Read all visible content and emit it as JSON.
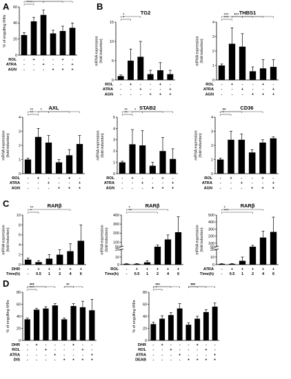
{
  "panel_labels": [
    "A",
    "B",
    "C",
    "D"
  ],
  "chart_data": [
    {
      "id": "A",
      "type": "bar",
      "title": "",
      "ylabel": "% of engulfing MΦs",
      "ylim": [
        0,
        60
      ],
      "yticks": [
        "0",
        "20",
        "40",
        "60"
      ],
      "values": [
        25,
        42,
        50,
        27,
        30,
        34
      ],
      "errors": [
        3,
        5,
        6,
        4,
        6,
        6
      ],
      "rows": [
        {
          "label": "ROL",
          "marks": [
            "-",
            "+",
            "-",
            "-",
            "+",
            "-"
          ]
        },
        {
          "label": "ATRA",
          "marks": [
            "-",
            "-",
            "+",
            "-",
            "-",
            "+"
          ]
        },
        {
          "label": "AGN",
          "marks": [
            "-",
            "-",
            "-",
            "+",
            "+",
            "+"
          ]
        }
      ],
      "sig": [
        {
          "a": 0,
          "b": 1,
          "label": "****"
        },
        {
          "a": 0,
          "b": 2,
          "label": "****"
        },
        {
          "a": 1,
          "b": 4,
          "label": "*"
        },
        {
          "a": 2,
          "b": 5,
          "label": "***"
        }
      ]
    },
    {
      "id": "TG2",
      "type": "bar",
      "title": "TG2",
      "ylabel": "mRNA expression\n(fold induction)",
      "ylim": [
        0,
        15
      ],
      "yticks": [
        "0",
        "5",
        "10",
        "15"
      ],
      "values": [
        1,
        5,
        6,
        1.5,
        2.5,
        1.5
      ],
      "errors": [
        0.3,
        3,
        4,
        1,
        2,
        1
      ],
      "rows": [
        {
          "label": "ROL",
          "marks": [
            "-",
            "+",
            "-",
            "-",
            "+",
            "-"
          ]
        },
        {
          "label": "ATRA",
          "marks": [
            "-",
            "-",
            "+",
            "-",
            "-",
            "+"
          ]
        },
        {
          "label": "AGN",
          "marks": [
            "-",
            "-",
            "-",
            "+",
            "+",
            "+"
          ]
        }
      ],
      "sig": [
        {
          "a": 0,
          "b": 1,
          "label": "*"
        },
        {
          "a": 0,
          "b": 2,
          "label": "*"
        }
      ]
    },
    {
      "id": "THBS1",
      "type": "bar",
      "title": "THBS1",
      "ylabel": "mRNA expression\n(fold induction)",
      "ylim": [
        0,
        4
      ],
      "yticks": [
        "0",
        "1",
        "2",
        "3",
        "4"
      ],
      "values": [
        1,
        2.5,
        2.3,
        0.6,
        0.8,
        0.9
      ],
      "errors": [
        0.1,
        1.1,
        0.9,
        0.3,
        0.6,
        0.5
      ],
      "rows": [
        {
          "label": "ROL",
          "marks": [
            "-",
            "+",
            "-",
            "-",
            "+",
            "-"
          ]
        },
        {
          "label": "ATRA",
          "marks": [
            "-",
            "-",
            "+",
            "-",
            "-",
            "+"
          ]
        },
        {
          "label": "AGN",
          "marks": [
            "-",
            "-",
            "-",
            "+",
            "+",
            "+"
          ]
        }
      ],
      "sig": [
        {
          "a": 0,
          "b": 1,
          "label": "***"
        },
        {
          "a": 0,
          "b": 2,
          "label": "***"
        },
        {
          "a": 1,
          "b": 3,
          "label": "***"
        },
        {
          "a": 1,
          "b": 4,
          "label": "*"
        },
        {
          "a": 2,
          "b": 5,
          "label": "*"
        }
      ]
    },
    {
      "id": "AXL",
      "type": "bar",
      "title": "AXL",
      "ylabel": "mRNA expression\n(fold induction)",
      "ylim": [
        0,
        4
      ],
      "yticks": [
        "0",
        "1",
        "2",
        "3",
        "4"
      ],
      "values": [
        1,
        2.6,
        2.2,
        0.8,
        1.3,
        2.1
      ],
      "errors": [
        0.1,
        0.6,
        0.5,
        0.2,
        0.4,
        0.6
      ],
      "rows": [
        {
          "label": "ROL",
          "marks": [
            "-",
            "+",
            "-",
            "-",
            "+",
            "-"
          ]
        },
        {
          "label": "ATRA",
          "marks": [
            "-",
            "-",
            "+",
            "-",
            "-",
            "+"
          ]
        },
        {
          "label": "AGN",
          "marks": [
            "-",
            "-",
            "-",
            "+",
            "+",
            "+"
          ]
        }
      ],
      "sig": [
        {
          "a": 0,
          "b": 1,
          "label": "**"
        },
        {
          "a": 0,
          "b": 2,
          "label": "**"
        },
        {
          "a": 1,
          "b": 4,
          "label": "*"
        },
        {
          "a": 2,
          "b": 5,
          "label": "*"
        }
      ]
    },
    {
      "id": "STAB2",
      "type": "bar",
      "title": "STAB2",
      "ylabel": "mRNA expression\n(fold induction)",
      "ylim": [
        0,
        5
      ],
      "yticks": [
        "0",
        "1",
        "2",
        "3",
        "4",
        "5"
      ],
      "values": [
        1,
        2.6,
        2.5,
        0.7,
        2.0,
        1.3
      ],
      "errors": [
        0.1,
        1.3,
        1.3,
        0.3,
        1.2,
        0.9
      ],
      "rows": [
        {
          "label": "ROL",
          "marks": [
            "-",
            "+",
            "-",
            "-",
            "+",
            "-"
          ]
        },
        {
          "label": "ATRA",
          "marks": [
            "-",
            "-",
            "+",
            "-",
            "-",
            "+"
          ]
        },
        {
          "label": "AGN",
          "marks": [
            "-",
            "-",
            "-",
            "+",
            "+",
            "+"
          ]
        }
      ],
      "sig": [
        {
          "a": 0,
          "b": 1,
          "label": "**"
        },
        {
          "a": 0,
          "b": 2,
          "label": "**"
        },
        {
          "a": 1,
          "b": 4,
          "label": "*"
        },
        {
          "a": 2,
          "b": 5,
          "label": "*"
        }
      ]
    },
    {
      "id": "CD36",
      "type": "bar",
      "title": "CD36",
      "ylabel": "mRNA expression\n(fold induction)",
      "ylim": [
        0,
        4
      ],
      "yticks": [
        "0",
        "1",
        "2",
        "3",
        "4"
      ],
      "values": [
        1,
        2.4,
        2.4,
        1.5,
        2.2,
        2.5
      ],
      "errors": [
        0.1,
        0.6,
        0.4,
        0.2,
        0.2,
        0.1
      ],
      "rows": [
        {
          "label": "ROL",
          "marks": [
            "-",
            "+",
            "-",
            "-",
            "+",
            "-"
          ]
        },
        {
          "label": "ATRA",
          "marks": [
            "-",
            "-",
            "+",
            "-",
            "-",
            "+"
          ]
        },
        {
          "label": "AGN",
          "marks": [
            "-",
            "-",
            "-",
            "+",
            "+",
            "+"
          ]
        }
      ],
      "sig": [
        {
          "a": 0,
          "b": 1,
          "label": "*"
        },
        {
          "a": 0,
          "b": 2,
          "label": "**"
        },
        {
          "a": 0,
          "b": 4,
          "label": "**"
        }
      ]
    },
    {
      "id": "C1",
      "type": "bar",
      "title": "RARβ",
      "ylabel": "mRNA expression\n(fold induction)",
      "ylim": [
        0,
        10
      ],
      "yticks": [
        "0",
        "2",
        "4",
        "6",
        "8",
        "10"
      ],
      "values": [
        1,
        0.5,
        1.2,
        2,
        2.7,
        4.8
      ],
      "errors": [
        0.3,
        0.3,
        0.8,
        1,
        1.5,
        3.2
      ],
      "rows": [
        {
          "label": "DHR",
          "marks": [
            "-",
            "+",
            "+",
            "+",
            "+",
            "+"
          ]
        },
        {
          "label": "Time(h)",
          "marks": [
            "-",
            "0.5",
            "1",
            "2",
            "4",
            "6"
          ]
        }
      ],
      "sig": [
        {
          "a": 0,
          "b": 1,
          "label": "*"
        },
        {
          "a": 0,
          "b": 4,
          "label": "**"
        }
      ]
    },
    {
      "id": "C2",
      "type": "bar",
      "title": "RARβ",
      "ylabel": "mRNA expression\n(fold induction)",
      "break": true,
      "low_max": 20,
      "low_ticks": [
        "0",
        "10",
        "20"
      ],
      "high_min": 50,
      "high_max": 400,
      "high_ticks": [
        "50",
        "100",
        "200",
        "300",
        "400"
      ],
      "values": [
        1,
        1,
        3,
        50,
        130,
        210
      ],
      "errors": [
        0.3,
        0.5,
        2,
        20,
        50,
        170
      ],
      "rows": [
        {
          "label": "ROL",
          "marks": [
            "-",
            "+",
            "+",
            "+",
            "+",
            "+"
          ]
        },
        {
          "label": "Time(h)",
          "marks": [
            "-",
            "0.5",
            "1",
            "2",
            "4",
            "6"
          ]
        }
      ],
      "sig": [
        {
          "a": 0,
          "b": 3,
          "label": "**"
        },
        {
          "a": 0,
          "b": 4,
          "label": "*"
        }
      ]
    },
    {
      "id": "C3",
      "type": "bar",
      "title": "RARβ",
      "ylabel": "mRNA expression\n(fold induction)",
      "break": true,
      "low_max": 20,
      "low_ticks": [
        "0",
        "10",
        "20"
      ],
      "high_min": 50,
      "high_max": 500,
      "high_ticks": [
        "50",
        "100",
        "200",
        "300",
        "400",
        "500"
      ],
      "values": [
        1,
        1,
        5,
        50,
        180,
        260
      ],
      "errors": [
        0.3,
        0.5,
        5,
        20,
        90,
        210
      ],
      "rows": [
        {
          "label": "ATRA",
          "marks": [
            "-",
            "+",
            "+",
            "+",
            "+",
            "+"
          ]
        },
        {
          "label": "Time(h)",
          "marks": [
            "-",
            "0.5",
            "1",
            "2",
            "4",
            "6"
          ]
        }
      ],
      "sig": [
        {
          "a": 0,
          "b": 3,
          "label": "***"
        },
        {
          "a": 0,
          "b": 4,
          "label": "*"
        }
      ]
    },
    {
      "id": "D1",
      "type": "bar",
      "title": "",
      "ylabel": "% of engulfing MΦs",
      "ylim": [
        0,
        80
      ],
      "yticks": [
        "0",
        "20",
        "40",
        "60",
        "80"
      ],
      "values": [
        35,
        51,
        53,
        58,
        35,
        57,
        55,
        50
      ],
      "errors": [
        2,
        2,
        3,
        3,
        2,
        4,
        10,
        18
      ],
      "rows": [
        {
          "label": "DHR",
          "marks": [
            "-",
            "+",
            "-",
            "-",
            "-",
            "+",
            "-",
            "-"
          ]
        },
        {
          "label": "ROL",
          "marks": [
            "-",
            "-",
            "+",
            "-",
            "-",
            "-",
            "+",
            "-"
          ]
        },
        {
          "label": "ATRA",
          "marks": [
            "-",
            "-",
            "-",
            "+",
            "-",
            "-",
            "-",
            "+"
          ]
        },
        {
          "label": "DIS",
          "marks": [
            "-",
            "-",
            "-",
            "-",
            "+",
            "+",
            "+",
            "+"
          ]
        }
      ],
      "sig": [
        {
          "a": 0,
          "b": 1,
          "label": "***"
        },
        {
          "a": 0,
          "b": 2,
          "label": "***"
        },
        {
          "a": 0,
          "b": 3,
          "label": "***"
        },
        {
          "a": 4,
          "b": 5,
          "label": "**"
        },
        {
          "a": 4,
          "b": 6,
          "label": "*"
        }
      ]
    },
    {
      "id": "D2",
      "type": "bar",
      "title": "",
      "ylabel": "% of engulfing MΦs",
      "ylim": [
        0,
        80
      ],
      "yticks": [
        "0",
        "20",
        "40",
        "60",
        "80"
      ],
      "values": [
        27,
        36,
        42,
        53,
        26,
        36,
        47,
        56
      ],
      "errors": [
        3,
        5,
        4,
        8,
        3,
        4,
        4,
        6
      ],
      "rows": [
        {
          "label": "DHR",
          "marks": [
            "-",
            "+",
            "-",
            "-",
            "-",
            "+",
            "-",
            "-"
          ]
        },
        {
          "label": "ROL",
          "marks": [
            "-",
            "-",
            "+",
            "-",
            "-",
            "-",
            "+",
            "-"
          ]
        },
        {
          "label": "ATRA",
          "marks": [
            "-",
            "-",
            "-",
            "+",
            "-",
            "-",
            "-",
            "+"
          ]
        },
        {
          "label": "DEAB",
          "marks": [
            "-",
            "-",
            "-",
            "-",
            "+",
            "+",
            "+",
            "+"
          ]
        }
      ],
      "sig": [
        {
          "a": 0,
          "b": 1,
          "label": "*"
        },
        {
          "a": 0,
          "b": 2,
          "label": "**"
        },
        {
          "a": 0,
          "b": 3,
          "label": "***"
        },
        {
          "a": 4,
          "b": 5,
          "label": "**"
        },
        {
          "a": 4,
          "b": 6,
          "label": "***"
        },
        {
          "a": 4,
          "b": 7,
          "label": "***"
        }
      ]
    }
  ]
}
